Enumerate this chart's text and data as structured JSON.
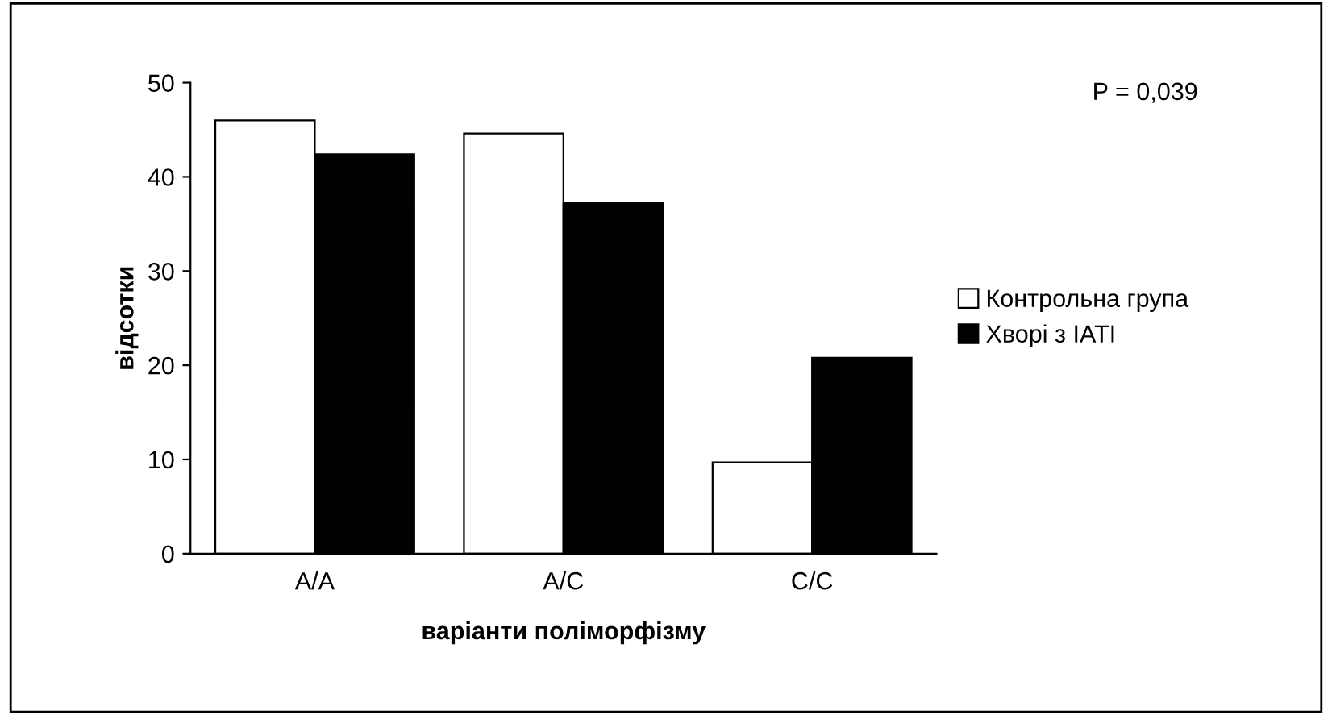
{
  "chart_data": {
    "type": "bar",
    "xlabel": "варіанти поліморфізму",
    "ylabel": "відсотки",
    "categories": [
      "A/A",
      "A/C",
      "C/C"
    ],
    "series": [
      {
        "name": "Контрольна група",
        "color": "#ffffff",
        "values": [
          46,
          44.6,
          9.7
        ]
      },
      {
        "name": "Хворі з ІАТІ",
        "color": "#000000",
        "values": [
          42.4,
          37.2,
          20.8
        ]
      }
    ],
    "ylim": [
      0,
      50
    ],
    "yticks": [
      0,
      10,
      20,
      30,
      40,
      50
    ],
    "grid": false,
    "legend": "right",
    "annotations": [
      "P = 0,039"
    ]
  }
}
